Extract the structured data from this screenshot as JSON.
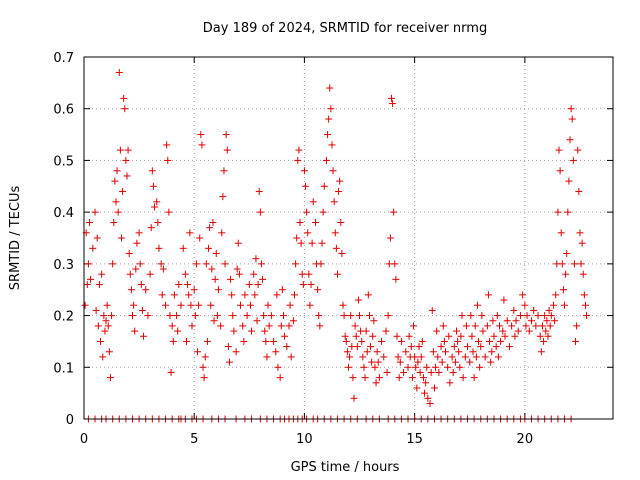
{
  "chart_data": {
    "type": "scatter",
    "title": "Day 189 of 2024, SRMTID for receiver nrmg",
    "xlabel": "GPS time / hours",
    "ylabel": "SRMTID / TECUs",
    "xlim": [
      0,
      24
    ],
    "ylim": [
      0,
      0.7
    ],
    "xticks": [
      0,
      5,
      10,
      15,
      20
    ],
    "xtick_labels": [
      "0",
      "5",
      "10",
      "15",
      "20"
    ],
    "yticks": [
      0,
      0.1,
      0.2,
      0.3,
      0.4,
      0.5,
      0.6,
      0.7
    ],
    "ytick_labels": [
      "0",
      "0.1",
      "0.2",
      "0.3",
      "0.4",
      "0.5",
      "0.6",
      "0.7"
    ],
    "grid": true,
    "marker": "+",
    "series_color": "#e00000",
    "points": [
      [
        0.05,
        0.22
      ],
      [
        0.1,
        0.36
      ],
      [
        0.15,
        0.26
      ],
      [
        0.2,
        0.3
      ],
      [
        0.25,
        0.38
      ],
      [
        0.3,
        0.27
      ],
      [
        0.4,
        0.33
      ],
      [
        0.5,
        0.4
      ],
      [
        0.55,
        0.21
      ],
      [
        0.6,
        0.35
      ],
      [
        0.65,
        0.18
      ],
      [
        0.7,
        0.26
      ],
      [
        0.75,
        0.15
      ],
      [
        0.8,
        0.28
      ],
      [
        0.85,
        0.12
      ],
      [
        0.9,
        0.2
      ],
      [
        0.95,
        0.17
      ],
      [
        1.0,
        0.19
      ],
      [
        1.05,
        0.22
      ],
      [
        1.1,
        0.18
      ],
      [
        1.15,
        0.13
      ],
      [
        1.2,
        0.08
      ],
      [
        1.25,
        0.2
      ],
      [
        1.3,
        0.3
      ],
      [
        1.35,
        0.38
      ],
      [
        1.4,
        0.46
      ],
      [
        1.45,
        0.42
      ],
      [
        1.5,
        0.48
      ],
      [
        1.55,
        0.4
      ],
      [
        1.6,
        0.67
      ],
      [
        1.65,
        0.52
      ],
      [
        1.7,
        0.35
      ],
      [
        1.75,
        0.44
      ],
      [
        1.8,
        0.62
      ],
      [
        1.85,
        0.6
      ],
      [
        1.9,
        0.5
      ],
      [
        1.95,
        0.47
      ],
      [
        2.0,
        0.52
      ],
      [
        2.05,
        0.32
      ],
      [
        2.1,
        0.28
      ],
      [
        2.15,
        0.25
      ],
      [
        2.2,
        0.2
      ],
      [
        2.25,
        0.22
      ],
      [
        2.3,
        0.17
      ],
      [
        2.35,
        0.29
      ],
      [
        2.4,
        0.34
      ],
      [
        2.5,
        0.36
      ],
      [
        2.55,
        0.3
      ],
      [
        2.6,
        0.26
      ],
      [
        2.65,
        0.21
      ],
      [
        2.7,
        0.16
      ],
      [
        2.8,
        0.25
      ],
      [
        2.9,
        0.2
      ],
      [
        3.0,
        0.28
      ],
      [
        3.05,
        0.37
      ],
      [
        3.1,
        0.48
      ],
      [
        3.15,
        0.45
      ],
      [
        3.2,
        0.41
      ],
      [
        3.3,
        0.42
      ],
      [
        3.35,
        0.38
      ],
      [
        3.4,
        0.33
      ],
      [
        3.5,
        0.3
      ],
      [
        3.55,
        0.24
      ],
      [
        3.6,
        0.29
      ],
      [
        3.7,
        0.22
      ],
      [
        3.75,
        0.53
      ],
      [
        3.8,
        0.5
      ],
      [
        3.85,
        0.4
      ],
      [
        3.9,
        0.2
      ],
      [
        3.95,
        0.09
      ],
      [
        4.0,
        0.18
      ],
      [
        4.05,
        0.15
      ],
      [
        4.1,
        0.24
      ],
      [
        4.2,
        0.2
      ],
      [
        4.25,
        0.17
      ],
      [
        4.3,
        0.26
      ],
      [
        4.4,
        0.22
      ],
      [
        4.5,
        0.33
      ],
      [
        4.6,
        0.28
      ],
      [
        4.65,
        0.15
      ],
      [
        4.7,
        0.26
      ],
      [
        4.75,
        0.24
      ],
      [
        4.8,
        0.36
      ],
      [
        4.85,
        0.22
      ],
      [
        4.9,
        0.18
      ],
      [
        5.0,
        0.25
      ],
      [
        5.05,
        0.2
      ],
      [
        5.1,
        0.3
      ],
      [
        5.15,
        0.13
      ],
      [
        5.2,
        0.22
      ],
      [
        5.25,
        0.35
      ],
      [
        5.3,
        0.55
      ],
      [
        5.35,
        0.53
      ],
      [
        5.4,
        0.1
      ],
      [
        5.45,
        0.08
      ],
      [
        5.5,
        0.12
      ],
      [
        5.55,
        0.3
      ],
      [
        5.6,
        0.15
      ],
      [
        5.65,
        0.33
      ],
      [
        5.7,
        0.37
      ],
      [
        5.75,
        0.22
      ],
      [
        5.8,
        0.29
      ],
      [
        5.85,
        0.38
      ],
      [
        5.9,
        0.19
      ],
      [
        5.95,
        0.27
      ],
      [
        6.0,
        0.32
      ],
      [
        6.05,
        0.2
      ],
      [
        6.1,
        0.25
      ],
      [
        6.2,
        0.18
      ],
      [
        6.25,
        0.36
      ],
      [
        6.3,
        0.43
      ],
      [
        6.35,
        0.48
      ],
      [
        6.4,
        0.3
      ],
      [
        6.45,
        0.55
      ],
      [
        6.5,
        0.52
      ],
      [
        6.55,
        0.14
      ],
      [
        6.6,
        0.11
      ],
      [
        6.65,
        0.27
      ],
      [
        6.7,
        0.24
      ],
      [
        6.75,
        0.2
      ],
      [
        6.8,
        0.17
      ],
      [
        6.9,
        0.13
      ],
      [
        6.95,
        0.29
      ],
      [
        7.0,
        0.34
      ],
      [
        7.05,
        0.28
      ],
      [
        7.1,
        0.22
      ],
      [
        7.2,
        0.18
      ],
      [
        7.25,
        0.15
      ],
      [
        7.3,
        0.24
      ],
      [
        7.4,
        0.2
      ],
      [
        7.5,
        0.26
      ],
      [
        7.55,
        0.22
      ],
      [
        7.6,
        0.17
      ],
      [
        7.7,
        0.28
      ],
      [
        7.75,
        0.24
      ],
      [
        7.8,
        0.31
      ],
      [
        7.85,
        0.19
      ],
      [
        7.9,
        0.26
      ],
      [
        7.95,
        0.44
      ],
      [
        8.0,
        0.4
      ],
      [
        8.05,
        0.3
      ],
      [
        8.1,
        0.27
      ],
      [
        8.15,
        0.2
      ],
      [
        8.2,
        0.17
      ],
      [
        8.25,
        0.15
      ],
      [
        8.3,
        0.12
      ],
      [
        8.35,
        0.22
      ],
      [
        8.4,
        0.18
      ],
      [
        8.5,
        0.2
      ],
      [
        8.6,
        0.15
      ],
      [
        8.7,
        0.13
      ],
      [
        8.75,
        0.24
      ],
      [
        8.8,
        0.1
      ],
      [
        8.9,
        0.08
      ],
      [
        8.95,
        0.18
      ],
      [
        9.0,
        0.25
      ],
      [
        9.05,
        0.2
      ],
      [
        9.1,
        0.16
      ],
      [
        9.2,
        0.14
      ],
      [
        9.3,
        0.18
      ],
      [
        9.35,
        0.22
      ],
      [
        9.4,
        0.12
      ],
      [
        9.5,
        0.19
      ],
      [
        9.55,
        0.24
      ],
      [
        9.6,
        0.3
      ],
      [
        9.65,
        0.35
      ],
      [
        9.7,
        0.5
      ],
      [
        9.75,
        0.52
      ],
      [
        9.8,
        0.38
      ],
      [
        9.85,
        0.34
      ],
      [
        9.9,
        0.28
      ],
      [
        9.95,
        0.26
      ],
      [
        10.0,
        0.48
      ],
      [
        10.05,
        0.45
      ],
      [
        10.1,
        0.4
      ],
      [
        10.15,
        0.36
      ],
      [
        10.2,
        0.28
      ],
      [
        10.25,
        0.22
      ],
      [
        10.3,
        0.26
      ],
      [
        10.35,
        0.34
      ],
      [
        10.4,
        0.42
      ],
      [
        10.5,
        0.38
      ],
      [
        10.55,
        0.3
      ],
      [
        10.6,
        0.25
      ],
      [
        10.65,
        0.2
      ],
      [
        10.7,
        0.18
      ],
      [
        10.75,
        0.3
      ],
      [
        10.8,
        0.34
      ],
      [
        10.85,
        0.4
      ],
      [
        10.9,
        0.45
      ],
      [
        11.0,
        0.5
      ],
      [
        11.05,
        0.55
      ],
      [
        11.1,
        0.58
      ],
      [
        11.15,
        0.64
      ],
      [
        11.2,
        0.6
      ],
      [
        11.25,
        0.53
      ],
      [
        11.3,
        0.48
      ],
      [
        11.35,
        0.42
      ],
      [
        11.4,
        0.36
      ],
      [
        11.45,
        0.33
      ],
      [
        11.5,
        0.28
      ],
      [
        11.55,
        0.44
      ],
      [
        11.6,
        0.46
      ],
      [
        11.65,
        0.38
      ],
      [
        11.7,
        0.32
      ],
      [
        11.75,
        0.22
      ],
      [
        11.8,
        0.2
      ],
      [
        11.85,
        0.16
      ],
      [
        11.9,
        0.15
      ],
      [
        11.95,
        0.13
      ],
      [
        12.0,
        0.1
      ],
      [
        12.05,
        0.12
      ],
      [
        12.1,
        0.2
      ],
      [
        12.15,
        0.14
      ],
      [
        12.2,
        0.08
      ],
      [
        12.25,
        0.04
      ],
      [
        12.3,
        0.18
      ],
      [
        12.35,
        0.16
      ],
      [
        12.4,
        0.14
      ],
      [
        12.45,
        0.23
      ],
      [
        12.5,
        0.2
      ],
      [
        12.55,
        0.17
      ],
      [
        12.6,
        0.15
      ],
      [
        12.65,
        0.12
      ],
      [
        12.7,
        0.1
      ],
      [
        12.75,
        0.08
      ],
      [
        12.8,
        0.17
      ],
      [
        12.85,
        0.13
      ],
      [
        12.9,
        0.24
      ],
      [
        12.95,
        0.2
      ],
      [
        13.0,
        0.14
      ],
      [
        13.05,
        0.11
      ],
      [
        13.1,
        0.16
      ],
      [
        13.15,
        0.19
      ],
      [
        13.2,
        0.1
      ],
      [
        13.25,
        0.07
      ],
      [
        13.3,
        0.13
      ],
      [
        13.35,
        0.11
      ],
      [
        13.4,
        0.08
      ],
      [
        13.5,
        0.15
      ],
      [
        13.6,
        0.12
      ],
      [
        13.7,
        0.17
      ],
      [
        13.75,
        0.09
      ],
      [
        13.8,
        0.2
      ],
      [
        13.85,
        0.3
      ],
      [
        13.9,
        0.35
      ],
      [
        13.95,
        0.62
      ],
      [
        14.0,
        0.61
      ],
      [
        14.05,
        0.4
      ],
      [
        14.1,
        0.3
      ],
      [
        14.15,
        0.27
      ],
      [
        14.2,
        0.16
      ],
      [
        14.25,
        0.12
      ],
      [
        14.3,
        0.08
      ],
      [
        14.35,
        0.11
      ],
      [
        14.4,
        0.15
      ],
      [
        14.5,
        0.09
      ],
      [
        14.6,
        0.13
      ],
      [
        14.7,
        0.1
      ],
      [
        14.75,
        0.16
      ],
      [
        14.8,
        0.12
      ],
      [
        14.85,
        0.14
      ],
      [
        14.9,
        0.08
      ],
      [
        14.95,
        0.18
      ],
      [
        15.0,
        0.12
      ],
      [
        15.05,
        0.1
      ],
      [
        15.1,
        0.06
      ],
      [
        15.15,
        0.11
      ],
      [
        15.2,
        0.14
      ],
      [
        15.25,
        0.09
      ],
      [
        15.3,
        0.12
      ],
      [
        15.35,
        0.15
      ],
      [
        15.4,
        0.08
      ],
      [
        15.45,
        0.05
      ],
      [
        15.5,
        0.07
      ],
      [
        15.55,
        0.1
      ],
      [
        15.6,
        0.04
      ],
      [
        15.7,
        0.03
      ],
      [
        15.75,
        0.09
      ],
      [
        15.8,
        0.21
      ],
      [
        15.85,
        0.13
      ],
      [
        15.9,
        0.06
      ],
      [
        15.95,
        0.1
      ],
      [
        16.0,
        0.17
      ],
      [
        16.05,
        0.12
      ],
      [
        16.1,
        0.09
      ],
      [
        16.2,
        0.14
      ],
      [
        16.25,
        0.11
      ],
      [
        16.3,
        0.18
      ],
      [
        16.35,
        0.15
      ],
      [
        16.4,
        0.13
      ],
      [
        16.5,
        0.1
      ],
      [
        16.55,
        0.16
      ],
      [
        16.6,
        0.07
      ],
      [
        16.7,
        0.12
      ],
      [
        16.75,
        0.09
      ],
      [
        16.8,
        0.14
      ],
      [
        16.85,
        0.11
      ],
      [
        16.9,
        0.17
      ],
      [
        16.95,
        0.15
      ],
      [
        17.0,
        0.13
      ],
      [
        17.05,
        0.1
      ],
      [
        17.1,
        0.16
      ],
      [
        17.15,
        0.2
      ],
      [
        17.2,
        0.08
      ],
      [
        17.3,
        0.12
      ],
      [
        17.35,
        0.18
      ],
      [
        17.4,
        0.14
      ],
      [
        17.5,
        0.11
      ],
      [
        17.55,
        0.2
      ],
      [
        17.6,
        0.16
      ],
      [
        17.65,
        0.13
      ],
      [
        17.7,
        0.08
      ],
      [
        17.75,
        0.18
      ],
      [
        17.8,
        0.12
      ],
      [
        17.85,
        0.22
      ],
      [
        17.9,
        0.15
      ],
      [
        17.95,
        0.1
      ],
      [
        18.0,
        0.14
      ],
      [
        18.05,
        0.2
      ],
      [
        18.1,
        0.17
      ],
      [
        18.2,
        0.12
      ],
      [
        18.3,
        0.18
      ],
      [
        18.35,
        0.24
      ],
      [
        18.4,
        0.15
      ],
      [
        18.45,
        0.11
      ],
      [
        18.5,
        0.13
      ],
      [
        18.55,
        0.19
      ],
      [
        18.6,
        0.16
      ],
      [
        18.7,
        0.14
      ],
      [
        18.75,
        0.2
      ],
      [
        18.8,
        0.12
      ],
      [
        18.85,
        0.18
      ],
      [
        18.9,
        0.15
      ],
      [
        19.0,
        0.17
      ],
      [
        19.05,
        0.23
      ],
      [
        19.1,
        0.16
      ],
      [
        19.2,
        0.19
      ],
      [
        19.3,
        0.14
      ],
      [
        19.4,
        0.18
      ],
      [
        19.5,
        0.21
      ],
      [
        19.55,
        0.16
      ],
      [
        19.6,
        0.19
      ],
      [
        19.7,
        0.17
      ],
      [
        19.8,
        0.2
      ],
      [
        19.9,
        0.24
      ],
      [
        20.0,
        0.22
      ],
      [
        20.05,
        0.18
      ],
      [
        20.1,
        0.2
      ],
      [
        20.2,
        0.17
      ],
      [
        20.3,
        0.19
      ],
      [
        20.4,
        0.21
      ],
      [
        20.5,
        0.18
      ],
      [
        20.6,
        0.2
      ],
      [
        20.7,
        0.16
      ],
      [
        20.75,
        0.13
      ],
      [
        20.8,
        0.18
      ],
      [
        20.85,
        0.15
      ],
      [
        20.9,
        0.2
      ],
      [
        20.95,
        0.17
      ],
      [
        21.0,
        0.19
      ],
      [
        21.05,
        0.16
      ],
      [
        21.1,
        0.21
      ],
      [
        21.15,
        0.18
      ],
      [
        21.2,
        0.2
      ],
      [
        21.3,
        0.22
      ],
      [
        21.35,
        0.19
      ],
      [
        21.4,
        0.24
      ],
      [
        21.45,
        0.3
      ],
      [
        21.5,
        0.4
      ],
      [
        21.55,
        0.52
      ],
      [
        21.6,
        0.48
      ],
      [
        21.65,
        0.36
      ],
      [
        21.7,
        0.3
      ],
      [
        21.75,
        0.25
      ],
      [
        21.8,
        0.22
      ],
      [
        21.85,
        0.28
      ],
      [
        21.9,
        0.32
      ],
      [
        21.95,
        0.4
      ],
      [
        22.0,
        0.46
      ],
      [
        22.05,
        0.54
      ],
      [
        22.1,
        0.6
      ],
      [
        22.15,
        0.58
      ],
      [
        22.2,
        0.5
      ],
      [
        22.25,
        0.3
      ],
      [
        22.3,
        0.15
      ],
      [
        22.35,
        0.18
      ],
      [
        22.4,
        0.52
      ],
      [
        22.45,
        0.44
      ],
      [
        22.5,
        0.36
      ],
      [
        22.55,
        0.3
      ],
      [
        22.6,
        0.34
      ],
      [
        22.65,
        0.28
      ],
      [
        22.7,
        0.24
      ],
      [
        22.75,
        0.22
      ],
      [
        22.8,
        0.2
      ]
    ],
    "zero_points_x": [
      0.2,
      0.5,
      0.8,
      1.0,
      1.3,
      1.6,
      1.9,
      2.2,
      2.5,
      2.8,
      3.1,
      3.4,
      3.7,
      4.0,
      4.3,
      4.4,
      4.6,
      4.9,
      5.1,
      5.4,
      5.8,
      6.1,
      6.4,
      6.9,
      7.3,
      7.6,
      8.0,
      8.3,
      8.6,
      8.9,
      9.1,
      9.3,
      9.5,
      9.7,
      9.9,
      10.1,
      10.4,
      10.6,
      10.9,
      11.2,
      11.5,
      11.8,
      12.1,
      12.4,
      12.8,
      13.1,
      13.4,
      13.8,
      14.1,
      14.4,
      14.7,
      15.0,
      15.3,
      15.6,
      15.9,
      16.2,
      16.5,
      16.8,
      17.1,
      17.4,
      17.7,
      18.0,
      18.3,
      18.6,
      18.9,
      19.2,
      19.5,
      19.8,
      20.0,
      20.3,
      20.6,
      20.9,
      21.2,
      21.5,
      21.8,
      22.1
    ]
  }
}
